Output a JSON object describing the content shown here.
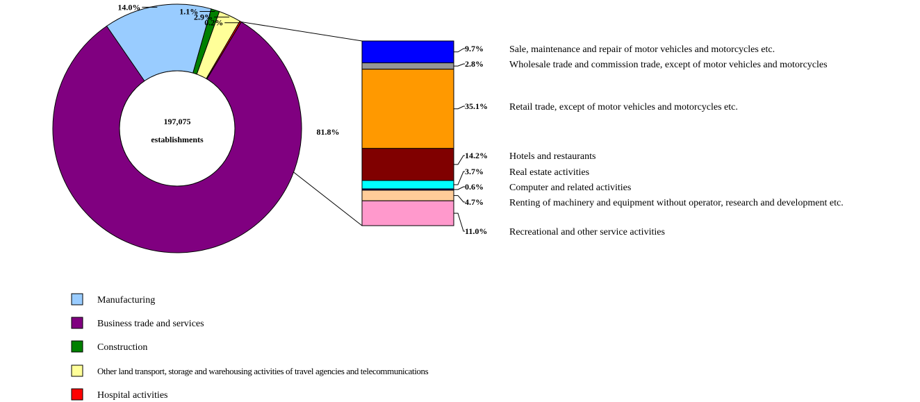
{
  "chart_data": {
    "type": "pie",
    "total_label_line1": "197,075",
    "total_label_line2": "establishments",
    "donut": [
      {
        "name": "Business trade and services",
        "value": 81.8,
        "label": "81.8%",
        "color": "#800080"
      },
      {
        "name": "Manufacturing",
        "value": 14.0,
        "label": "14.0%",
        "color": "#99CCFF"
      },
      {
        "name": "Construction",
        "value": 1.1,
        "label": "1.1%",
        "color": "#008000"
      },
      {
        "name": "Other land transport, storage and warehousing activities of travel agencies and  telecommunications",
        "value": 2.9,
        "label": "2.9%",
        "color": "#FFFF99"
      },
      {
        "name": "Hospital activities",
        "value": 0.2,
        "label": "0.2%",
        "color": "#FF0000"
      }
    ],
    "breakdown_of": "Business trade and services",
    "breakdown": [
      {
        "name": "Sale, maintenance and repair of motor vehicles and motorcycles etc.",
        "value": 9.7,
        "label": "9.7%",
        "color": "#0000FF"
      },
      {
        "name": "Wholesale trade and commission trade, except of motor vehicles and motorcycles",
        "value": 2.8,
        "label": "2.8%",
        "color": "#969696"
      },
      {
        "name": "Retail trade, except of motor vehicles and motorcycles etc.",
        "value": 35.1,
        "label": "35.1%",
        "color": "#FF9900"
      },
      {
        "name": "Hotels and restaurants",
        "value": 14.2,
        "label": "14.2%",
        "color": "#800000"
      },
      {
        "name": "Real estate activities",
        "value": 3.7,
        "label": "3.7%",
        "color": "#00FFFF"
      },
      {
        "name": "Computer and related activities",
        "value": 0.6,
        "label": "0.6%",
        "color": "#000080"
      },
      {
        "name": "Renting of machinery and equipment  without  operator, research and development etc.",
        "value": 4.7,
        "label": "4.7%",
        "color": "#FFCC99"
      },
      {
        "name": "Recreational and other service activities",
        "value": 11.0,
        "label": "11.0%",
        "color": "#FF99CC"
      }
    ],
    "legend": [
      {
        "label": "Manufacturing",
        "color": "#99CCFF"
      },
      {
        "label": "Business trade and services",
        "color": "#800080"
      },
      {
        "label": "Construction",
        "color": "#008000"
      },
      {
        "label": "Other land transport, storage and warehousing activities of travel agencies and  telecommunications",
        "color": "#FFFF99"
      },
      {
        "label": "Hospital activities",
        "color": "#FF0000"
      }
    ]
  }
}
